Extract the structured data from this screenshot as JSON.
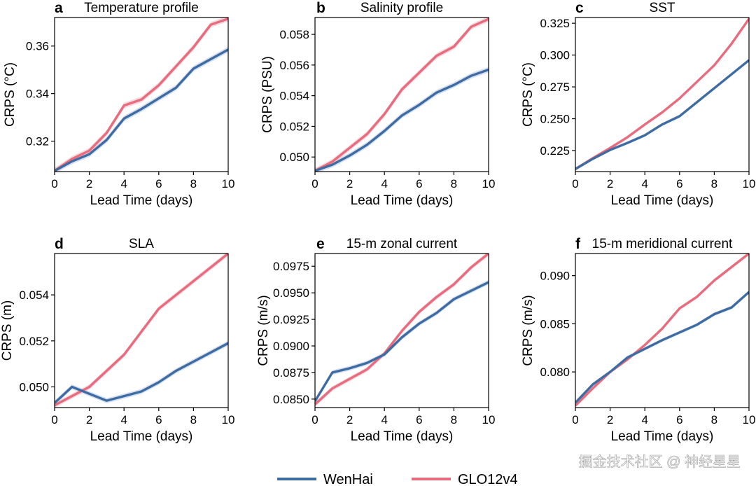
{
  "colors": {
    "wenhai": "#3f6ba3",
    "glo12v4": "#e86b7e",
    "wenhai_band": "#b9cbe6",
    "glo12v4_band": "#f5c2ca"
  },
  "legend": {
    "wenhai": "WenHai",
    "glo12v4": "GLO12v4"
  },
  "watermark": "掘金技术社区 @ 神经星星",
  "chart_data": [
    {
      "type": "line",
      "letter": "a",
      "title": "Temperature profile",
      "xlabel": "Lead Time (days)",
      "ylabel": "CRPS (°C)",
      "xlim": [
        0,
        10
      ],
      "ylim": [
        0.3072,
        0.372
      ],
      "xticks": [
        0,
        2,
        4,
        6,
        8,
        10
      ],
      "xtick_labels": [
        "0",
        "2",
        "4",
        "6",
        "8",
        "10"
      ],
      "yticks": [
        0.32,
        0.34,
        0.36
      ],
      "ytick_labels": [
        "0.32",
        "0.34",
        "0.36"
      ],
      "x": [
        0,
        1,
        2,
        3,
        4,
        5,
        6,
        7,
        8,
        9,
        10
      ],
      "series": [
        {
          "name": "WenHai",
          "values": [
            0.3075,
            0.3115,
            0.3145,
            0.3205,
            0.3295,
            0.3335,
            0.338,
            0.3425,
            0.3505,
            0.3545,
            0.3585
          ]
        },
        {
          "name": "GLO12v4",
          "values": [
            0.3075,
            0.3125,
            0.316,
            0.3235,
            0.335,
            0.3375,
            0.3435,
            0.3515,
            0.3595,
            0.369,
            0.3715
          ]
        }
      ]
    },
    {
      "type": "line",
      "letter": "b",
      "title": "Salinity profile",
      "xlabel": "Lead Time (days)",
      "ylabel": "CRPS (PSU)",
      "xlim": [
        0,
        10
      ],
      "ylim": [
        0.04905,
        0.0591
      ],
      "xticks": [
        0,
        2,
        4,
        6,
        8,
        10
      ],
      "xtick_labels": [
        "0",
        "2",
        "4",
        "6",
        "8",
        "10"
      ],
      "yticks": [
        0.05,
        0.052,
        0.054,
        0.056,
        0.058
      ],
      "ytick_labels": [
        "0.050",
        "0.052",
        "0.054",
        "0.056",
        "0.058"
      ],
      "x": [
        0,
        1,
        2,
        3,
        4,
        5,
        6,
        7,
        8,
        9,
        10
      ],
      "series": [
        {
          "name": "WenHai",
          "values": [
            0.0491,
            0.0495,
            0.0501,
            0.0508,
            0.0517,
            0.0527,
            0.0534,
            0.0542,
            0.0547,
            0.0553,
            0.0557
          ]
        },
        {
          "name": "GLO12v4",
          "values": [
            0.0491,
            0.0497,
            0.0506,
            0.0515,
            0.0528,
            0.0544,
            0.0555,
            0.0566,
            0.0572,
            0.0585,
            0.059
          ]
        }
      ]
    },
    {
      "type": "line",
      "letter": "c",
      "title": "SST",
      "xlabel": "Lead Time (days)",
      "ylabel": "CRPS (°C)",
      "xlim": [
        0,
        10
      ],
      "ylim": [
        0.2085,
        0.3295
      ],
      "xticks": [
        0,
        2,
        4,
        6,
        8,
        10
      ],
      "xtick_labels": [
        "0",
        "2",
        "4",
        "6",
        "8",
        "10"
      ],
      "yticks": [
        0.225,
        0.25,
        0.275,
        0.3,
        0.325
      ],
      "ytick_labels": [
        "0.225",
        "0.250",
        "0.275",
        "0.300",
        "0.325"
      ],
      "x": [
        0,
        1,
        2,
        3,
        4,
        5,
        6,
        7,
        8,
        9,
        10
      ],
      "series": [
        {
          "name": "WenHai",
          "values": [
            0.2105,
            0.2185,
            0.2255,
            0.231,
            0.237,
            0.2455,
            0.252,
            0.263,
            0.274,
            0.285,
            0.296
          ]
        },
        {
          "name": "GLO12v4",
          "values": [
            0.2105,
            0.219,
            0.227,
            0.2355,
            0.2455,
            0.255,
            0.266,
            0.279,
            0.292,
            0.309,
            0.3285
          ]
        }
      ]
    },
    {
      "type": "line",
      "letter": "d",
      "title": "SLA",
      "xlabel": "Lead Time (days)",
      "ylabel": "CRPS (m)",
      "xlim": [
        0,
        10
      ],
      "ylim": [
        0.0491,
        0.0558
      ],
      "xticks": [
        0,
        2,
        4,
        6,
        8,
        10
      ],
      "xtick_labels": [
        "0",
        "2",
        "4",
        "6",
        "8",
        "10"
      ],
      "yticks": [
        0.05,
        0.052,
        0.054
      ],
      "ytick_labels": [
        "0.050",
        "0.052",
        "0.054"
      ],
      "x": [
        0,
        1,
        2,
        3,
        4,
        5,
        6,
        7,
        8,
        9,
        10
      ],
      "series": [
        {
          "name": "WenHai",
          "values": [
            0.0493,
            0.05,
            0.0497,
            0.0494,
            0.0496,
            0.0498,
            0.0502,
            0.0507,
            0.0511,
            0.0515,
            0.0519
          ]
        },
        {
          "name": "GLO12v4",
          "values": [
            0.0492,
            0.0496,
            0.05,
            0.0507,
            0.0514,
            0.0524,
            0.0534,
            0.054,
            0.0546,
            0.0552,
            0.0558
          ]
        }
      ]
    },
    {
      "type": "line",
      "letter": "e",
      "title": "15-m zonal current",
      "xlabel": "Lead Time (days)",
      "ylabel": "CRPS (m/s)",
      "xlim": [
        0,
        10
      ],
      "ylim": [
        0.0842,
        0.0987
      ],
      "xticks": [
        0,
        2,
        4,
        6,
        8,
        10
      ],
      "xtick_labels": [
        "0",
        "2",
        "4",
        "6",
        "8",
        "10"
      ],
      "yticks": [
        0.085,
        0.0875,
        0.09,
        0.0925,
        0.095,
        0.0975
      ],
      "ytick_labels": [
        "0.0850",
        "0.0875",
        "0.0900",
        "0.0925",
        "0.0950",
        "0.0975"
      ],
      "x": [
        0,
        1,
        2,
        3,
        4,
        5,
        6,
        7,
        8,
        9,
        10
      ],
      "series": [
        {
          "name": "WenHai",
          "values": [
            0.0848,
            0.0875,
            0.0879,
            0.0884,
            0.0892,
            0.0908,
            0.0921,
            0.0931,
            0.0944,
            0.0952,
            0.096
          ]
        },
        {
          "name": "GLO12v4",
          "values": [
            0.0845,
            0.086,
            0.0869,
            0.0878,
            0.0893,
            0.0914,
            0.0932,
            0.0946,
            0.0958,
            0.0974,
            0.0987
          ]
        }
      ]
    },
    {
      "type": "line",
      "letter": "f",
      "title": "15-m meridional current",
      "xlabel": "Lead Time (days)",
      "ylabel": "CRPS (m/s)",
      "xlim": [
        0,
        10
      ],
      "ylim": [
        0.0763,
        0.0923
      ],
      "xticks": [
        0,
        2,
        4,
        6,
        8,
        10
      ],
      "xtick_labels": [
        "0",
        "2",
        "4",
        "6",
        "8",
        "10"
      ],
      "yticks": [
        0.08,
        0.085,
        0.09
      ],
      "ytick_labels": [
        "0.080",
        "0.085",
        "0.090"
      ],
      "x": [
        0,
        1,
        2,
        3,
        4,
        5,
        6,
        7,
        8,
        9,
        10
      ],
      "series": [
        {
          "name": "WenHai",
          "values": [
            0.0768,
            0.0787,
            0.08,
            0.0815,
            0.0824,
            0.0833,
            0.0841,
            0.0849,
            0.086,
            0.0867,
            0.0883
          ]
        },
        {
          "name": "GLO12v4",
          "values": [
            0.0765,
            0.0783,
            0.08,
            0.0813,
            0.0828,
            0.0845,
            0.0866,
            0.0878,
            0.0895,
            0.0909,
            0.0923
          ]
        }
      ]
    }
  ]
}
